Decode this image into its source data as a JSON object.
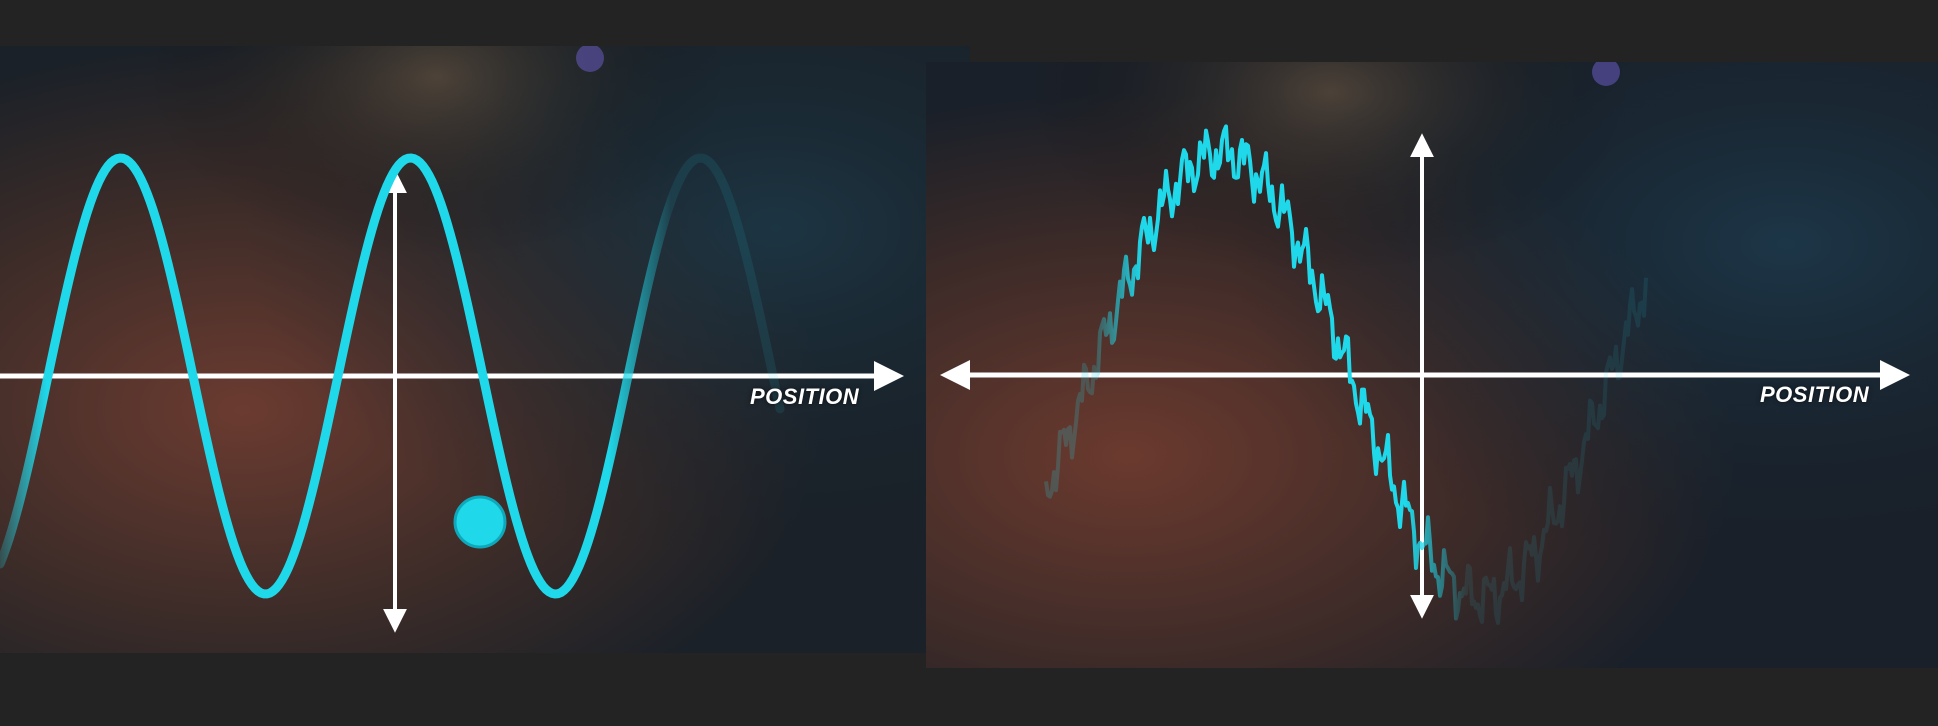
{
  "panels": {
    "left": {
      "axis_label": "POSITION"
    },
    "right": {
      "axis_label": "POSITION"
    }
  },
  "colors": {
    "wave": "#1fd8ea",
    "axis": "#ffffff",
    "background": "#232323"
  }
}
